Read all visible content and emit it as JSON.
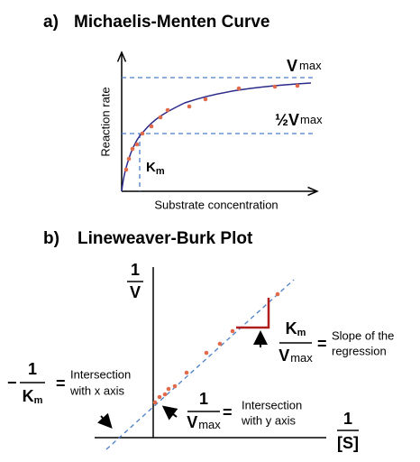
{
  "panel_a": {
    "label": "a)",
    "title": "Michaelis-Menten Curve",
    "y_label": "Reaction rate",
    "x_label": "Substrate concentration",
    "vmax": {
      "symbol": "V",
      "subscript": "max"
    },
    "half_vmax": {
      "symbol": "½V",
      "subscript": "max"
    },
    "km": {
      "symbol": "K",
      "subscript": "m"
    }
  },
  "panel_b": {
    "label": "b)",
    "title": "Lineweaver-Burk Plot",
    "y_axis": {
      "numerator": "1",
      "denominator": "V"
    },
    "x_axis": {
      "numerator": "1",
      "denominator": "[S]"
    },
    "slope": {
      "numerator_symbol": "K",
      "numerator_subscript": "m",
      "denominator_symbol": "V",
      "denominator_subscript": "max",
      "equals": "=",
      "description_lines": [
        "Slope of the",
        "regression"
      ]
    },
    "x_intercept": {
      "sign": "−",
      "numerator": "1",
      "denominator_symbol": "K",
      "denominator_subscript": "m",
      "equals": "=",
      "description_lines": [
        "Intersection",
        "with x axis"
      ]
    },
    "y_intercept": {
      "numerator": "1",
      "denominator_symbol": "V",
      "denominator_subscript": "max",
      "equals": "=",
      "description_lines": [
        "Intersection",
        "with y axis"
      ]
    }
  }
}
